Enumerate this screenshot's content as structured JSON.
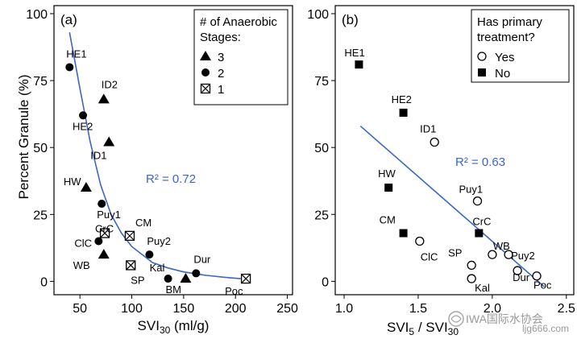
{
  "ylabel_shared": "Percent Granule (%)",
  "watermark": {
    "org": "IWA国际水协会",
    "site": "ljg666.com"
  },
  "chart_data": [
    {
      "type": "scatter",
      "panel": "(a)",
      "xlabel": "SVI",
      "xlabel_sub": "30",
      "xlabel_unit": " (ml/g)",
      "ylabel": "Percent Granule (%)",
      "xlim": [
        25,
        255
      ],
      "ylim": [
        -5,
        103
      ],
      "xticks": [
        50,
        100,
        150,
        200,
        250
      ],
      "yticks": [
        0,
        25,
        50,
        75,
        100
      ],
      "legend": {
        "title": "# of Anaerobic Stages:",
        "title_lines": [
          "# of Anaerobic",
          "Stages:"
        ],
        "entries": [
          {
            "label": "3",
            "marker": "triangle"
          },
          {
            "label": "2",
            "marker": "circle"
          },
          {
            "label": "1",
            "marker": "boxcross"
          }
        ],
        "position": "top-right"
      },
      "fit": {
        "type": "power",
        "label": "R² = 0.72",
        "color": "#3a66c4",
        "curve": [
          [
            40,
            93
          ],
          [
            50,
            72
          ],
          [
            60,
            52
          ],
          [
            70,
            36
          ],
          [
            80,
            25
          ],
          [
            90,
            18
          ],
          [
            100,
            13
          ],
          [
            110,
            10
          ],
          [
            120,
            7
          ],
          [
            135,
            5
          ],
          [
            150,
            3.5
          ],
          [
            170,
            2.3
          ],
          [
            190,
            1.5
          ],
          [
            205,
            1
          ]
        ]
      },
      "points": [
        {
          "name": "HE1",
          "x": 40,
          "y": 80,
          "marker": "circle"
        },
        {
          "name": "HE2",
          "x": 53,
          "y": 62,
          "marker": "circle"
        },
        {
          "name": "ID2",
          "x": 73,
          "y": 68,
          "marker": "triangle"
        },
        {
          "name": "ID1",
          "x": 78,
          "y": 52,
          "marker": "triangle"
        },
        {
          "name": "HW",
          "x": 56,
          "y": 35,
          "marker": "triangle"
        },
        {
          "name": "Puy1",
          "x": 71,
          "y": 29,
          "marker": "circle"
        },
        {
          "name": "CrC",
          "x": 74,
          "y": 18,
          "marker": "boxcross"
        },
        {
          "name": "CM",
          "x": 98,
          "y": 17,
          "marker": "boxcross"
        },
        {
          "name": "ClC",
          "x": 68,
          "y": 15,
          "marker": "circle"
        },
        {
          "name": "Puy2",
          "x": 117,
          "y": 10,
          "marker": "circle"
        },
        {
          "name": "WB",
          "x": 73,
          "y": 10,
          "marker": "triangle"
        },
        {
          "name": "SP",
          "x": 99,
          "y": 6,
          "marker": "boxcross"
        },
        {
          "name": "Kal",
          "x": 135,
          "y": 1,
          "marker": "circle"
        },
        {
          "name": "Dur",
          "x": 162,
          "y": 3,
          "marker": "circle"
        },
        {
          "name": "BM",
          "x": 152,
          "y": 1,
          "marker": "triangle"
        },
        {
          "name": "Poc",
          "x": 210,
          "y": 1,
          "marker": "boxcross"
        }
      ]
    },
    {
      "type": "scatter",
      "panel": "(b)",
      "xlabel": "SVI",
      "xlabel_sub": "5",
      "xlabel_mid": " / SVI",
      "xlabel_sub2": "30",
      "ylabel": "",
      "xlim": [
        0.94,
        2.55
      ],
      "ylim": [
        -5,
        103
      ],
      "xticks": [
        1.0,
        1.5,
        2.0,
        2.5
      ],
      "xtick_labels": [
        "1.0",
        "1.5",
        "2.0",
        "2.5"
      ],
      "yticks": [
        0,
        25,
        50,
        75,
        100
      ],
      "legend": {
        "title": "Has primary treatment?",
        "title_lines": [
          "Has primary",
          "treatment?"
        ],
        "entries": [
          {
            "label": "Yes",
            "marker": "open-circle"
          },
          {
            "label": "No",
            "marker": "square"
          }
        ],
        "position": "top-right"
      },
      "fit": {
        "type": "linear",
        "label": "R² = 0.63",
        "color": "#3a66c4",
        "x": [
          1.11,
          2.35
        ],
        "y": [
          58,
          -2
        ]
      },
      "points": [
        {
          "name": "HE1",
          "x": 1.1,
          "y": 81,
          "marker": "square"
        },
        {
          "name": "HE2",
          "x": 1.4,
          "y": 63,
          "marker": "square"
        },
        {
          "name": "ID1",
          "x": 1.61,
          "y": 52,
          "marker": "open-circle"
        },
        {
          "name": "HW",
          "x": 1.3,
          "y": 35,
          "marker": "square"
        },
        {
          "name": "Puy1",
          "x": 1.9,
          "y": 30,
          "marker": "open-circle"
        },
        {
          "name": "CM",
          "x": 1.4,
          "y": 18,
          "marker": "square"
        },
        {
          "name": "CrC",
          "x": 1.91,
          "y": 18,
          "marker": "square"
        },
        {
          "name": "ClC",
          "x": 1.51,
          "y": 15,
          "marker": "open-circle"
        },
        {
          "name": "WB",
          "x": 2.0,
          "y": 10,
          "marker": "open-circle"
        },
        {
          "name": "Puy2",
          "x": 2.11,
          "y": 10,
          "marker": "open-circle"
        },
        {
          "name": "SP",
          "x": 1.86,
          "y": 6,
          "marker": "open-circle"
        },
        {
          "name": "Dur",
          "x": 2.17,
          "y": 4,
          "marker": "open-circle"
        },
        {
          "name": "Kal",
          "x": 1.86,
          "y": 1,
          "marker": "open-circle"
        },
        {
          "name": "Poc",
          "x": 2.3,
          "y": 2,
          "marker": "open-circle"
        }
      ]
    }
  ]
}
